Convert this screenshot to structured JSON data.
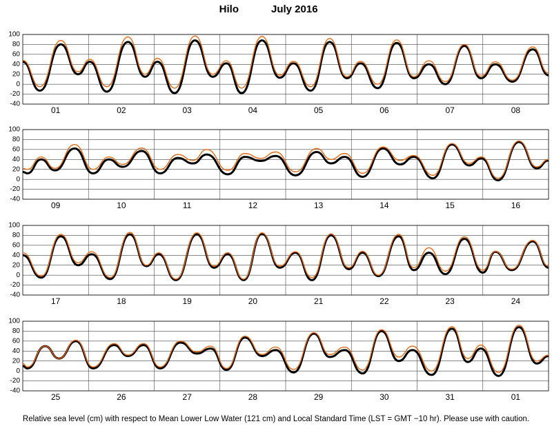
{
  "header": {
    "title": "Hilo",
    "subtitle": "July  2016"
  },
  "footer": "Relative sea level (cm) with respect to Mean Lower Low Water (121 cm) and Local Standard Time (LST = GMT −10 hr). Please use with caution.",
  "chart_data": [
    {
      "type": "line",
      "xlim": [
        0,
        8
      ],
      "ylim": [
        -40,
        100
      ],
      "yticks": [
        -40,
        -20,
        0,
        20,
        40,
        60,
        80,
        100
      ],
      "grid": true,
      "xgrid": [
        1,
        2,
        3,
        4,
        5,
        6,
        7
      ],
      "xticks": [
        {
          "value": 0.5,
          "label": "01"
        },
        {
          "value": 1.5,
          "label": "02"
        },
        {
          "value": 2.5,
          "label": "03"
        },
        {
          "value": 3.5,
          "label": "04"
        },
        {
          "value": 4.5,
          "label": "05"
        },
        {
          "value": 5.5,
          "label": "06"
        },
        {
          "value": 6.5,
          "label": "07"
        },
        {
          "value": 7.5,
          "label": "08"
        }
      ],
      "x": [
        0,
        0.26,
        0.58,
        0.84,
        1.02,
        1.28,
        1.6,
        1.86,
        2.05,
        2.31,
        2.62,
        2.89,
        3.1,
        3.33,
        3.64,
        3.91,
        4.12,
        4.38,
        4.67,
        4.93,
        5.14,
        5.4,
        5.69,
        5.95,
        6.18,
        6.43,
        6.72,
        6.97,
        7.19,
        7.45,
        7.76,
        8
      ],
      "series": [
        {
          "color": "#000000",
          "values": [
            45,
            -13,
            80,
            20,
            45,
            -15,
            85,
            15,
            45,
            -18,
            88,
            15,
            42,
            -18,
            88,
            13,
            42,
            -13,
            85,
            12,
            42,
            -8,
            83,
            12,
            40,
            0,
            77,
            12,
            40,
            5,
            70,
            18
          ]
        },
        {
          "color": "#e8660c",
          "values": [
            48,
            -5,
            88,
            25,
            50,
            -5,
            95,
            20,
            52,
            -8,
            97,
            20,
            47,
            -8,
            96,
            18,
            46,
            -5,
            92,
            15,
            46,
            0,
            89,
            15,
            47,
            5,
            80,
            16,
            45,
            8,
            75,
            22
          ]
        }
      ]
    },
    {
      "type": "line",
      "xlim": [
        0,
        8
      ],
      "ylim": [
        -40,
        100
      ],
      "yticks": [
        -40,
        -20,
        0,
        20,
        40,
        60,
        80,
        100
      ],
      "grid": true,
      "xgrid": [
        1,
        2,
        3,
        4,
        5,
        6,
        7
      ],
      "xticks": [
        {
          "value": 0.5,
          "label": "09"
        },
        {
          "value": 1.5,
          "label": "10"
        },
        {
          "value": 2.5,
          "label": "11"
        },
        {
          "value": 3.5,
          "label": "12"
        },
        {
          "value": 4.5,
          "label": "13"
        },
        {
          "value": 5.5,
          "label": "14"
        },
        {
          "value": 6.5,
          "label": "15"
        },
        {
          "value": 7.5,
          "label": "16"
        }
      ],
      "x": [
        0,
        0.07,
        0.28,
        0.49,
        0.79,
        1.07,
        1.31,
        1.52,
        1.81,
        2.09,
        2.36,
        2.59,
        2.8,
        3.12,
        3.38,
        3.62,
        3.85,
        4.15,
        4.47,
        4.69,
        4.9,
        5.17,
        5.48,
        5.74,
        5.95,
        6.24,
        6.53,
        6.79,
        6.98,
        7.23,
        7.55,
        7.82,
        8
      ],
      "series": [
        {
          "color": "#000000",
          "values": [
            15,
            12,
            40,
            18,
            62,
            12,
            40,
            25,
            57,
            12,
            43,
            32,
            50,
            10,
            45,
            37,
            47,
            8,
            55,
            32,
            45,
            5,
            62,
            30,
            45,
            2,
            70,
            28,
            42,
            -2,
            75,
            22,
            38
          ]
        },
        {
          "color": "#e8660c",
          "values": [
            22,
            20,
            45,
            22,
            70,
            20,
            45,
            30,
            63,
            20,
            50,
            38,
            60,
            18,
            52,
            42,
            55,
            15,
            62,
            40,
            52,
            12,
            65,
            38,
            48,
            8,
            72,
            32,
            45,
            2,
            77,
            25,
            40
          ]
        }
      ]
    },
    {
      "type": "line",
      "xlim": [
        0,
        8
      ],
      "ylim": [
        -40,
        100
      ],
      "yticks": [
        -40,
        -20,
        0,
        20,
        40,
        60,
        80,
        100
      ],
      "grid": true,
      "xgrid": [
        1,
        2,
        3,
        4,
        5,
        6,
        7
      ],
      "xticks": [
        {
          "value": 0.5,
          "label": "17"
        },
        {
          "value": 1.5,
          "label": "18"
        },
        {
          "value": 2.5,
          "label": "19"
        },
        {
          "value": 3.5,
          "label": "20"
        },
        {
          "value": 4.5,
          "label": "21"
        },
        {
          "value": 5.5,
          "label": "22"
        },
        {
          "value": 6.5,
          "label": "23"
        },
        {
          "value": 7.5,
          "label": "24"
        }
      ],
      "x": [
        0,
        0.28,
        0.58,
        0.84,
        1.05,
        1.33,
        1.63,
        1.88,
        2.07,
        2.33,
        2.65,
        2.91,
        3.12,
        3.36,
        3.64,
        3.91,
        4.15,
        4.4,
        4.69,
        4.96,
        5.17,
        5.41,
        5.72,
        5.95,
        6.18,
        6.43,
        6.72,
        7,
        7.19,
        7.44,
        7.76,
        8
      ],
      "series": [
        {
          "color": "#000000",
          "values": [
            40,
            -5,
            78,
            20,
            42,
            -8,
            82,
            18,
            42,
            -10,
            82,
            15,
            42,
            -10,
            83,
            15,
            45,
            -10,
            80,
            12,
            45,
            -2,
            78,
            10,
            45,
            2,
            73,
            5,
            47,
            10,
            68,
            15
          ]
        },
        {
          "color": "#e8660c",
          "values": [
            45,
            -2,
            82,
            25,
            47,
            -5,
            86,
            20,
            45,
            -8,
            85,
            18,
            45,
            -8,
            85,
            18,
            47,
            -5,
            83,
            15,
            48,
            0,
            82,
            15,
            55,
            8,
            77,
            10,
            48,
            12,
            70,
            18
          ]
        }
      ]
    },
    {
      "type": "line",
      "xlim": [
        0,
        8
      ],
      "ylim": [
        -40,
        100
      ],
      "yticks": [
        -40,
        -20,
        0,
        20,
        40,
        60,
        80,
        100
      ],
      "grid": true,
      "xgrid": [
        1,
        2,
        3,
        4,
        5,
        6,
        7
      ],
      "xticks": [
        {
          "value": 0.5,
          "label": "25"
        },
        {
          "value": 1.5,
          "label": "26"
        },
        {
          "value": 2.5,
          "label": "27"
        },
        {
          "value": 3.5,
          "label": "28"
        },
        {
          "value": 4.5,
          "label": "29"
        },
        {
          "value": 5.5,
          "label": "30"
        },
        {
          "value": 6.5,
          "label": "31"
        },
        {
          "value": 7.5,
          "label": "01"
        }
      ],
      "x": [
        0,
        0.07,
        0.34,
        0.55,
        0.81,
        1.07,
        1.39,
        1.6,
        1.84,
        2.09,
        2.4,
        2.65,
        2.86,
        3.1,
        3.38,
        3.64,
        3.85,
        4.12,
        4.43,
        4.67,
        4.9,
        5.17,
        5.46,
        5.72,
        5.93,
        6.22,
        6.53,
        6.77,
        6.97,
        7.24,
        7.55,
        7.82,
        8
      ],
      "series": [
        {
          "color": "#000000",
          "values": [
            10,
            5,
            50,
            25,
            60,
            5,
            52,
            30,
            52,
            5,
            57,
            35,
            45,
            2,
            67,
            30,
            42,
            -3,
            75,
            28,
            42,
            -5,
            80,
            20,
            42,
            -8,
            85,
            18,
            45,
            -10,
            88,
            15,
            30
          ]
        },
        {
          "color": "#e8660c",
          "values": [
            15,
            8,
            50,
            25,
            62,
            8,
            55,
            32,
            55,
            8,
            60,
            38,
            50,
            5,
            70,
            33,
            48,
            3,
            77,
            33,
            48,
            2,
            83,
            28,
            50,
            0,
            89,
            25,
            52,
            -3,
            92,
            20,
            32
          ]
        }
      ]
    }
  ]
}
